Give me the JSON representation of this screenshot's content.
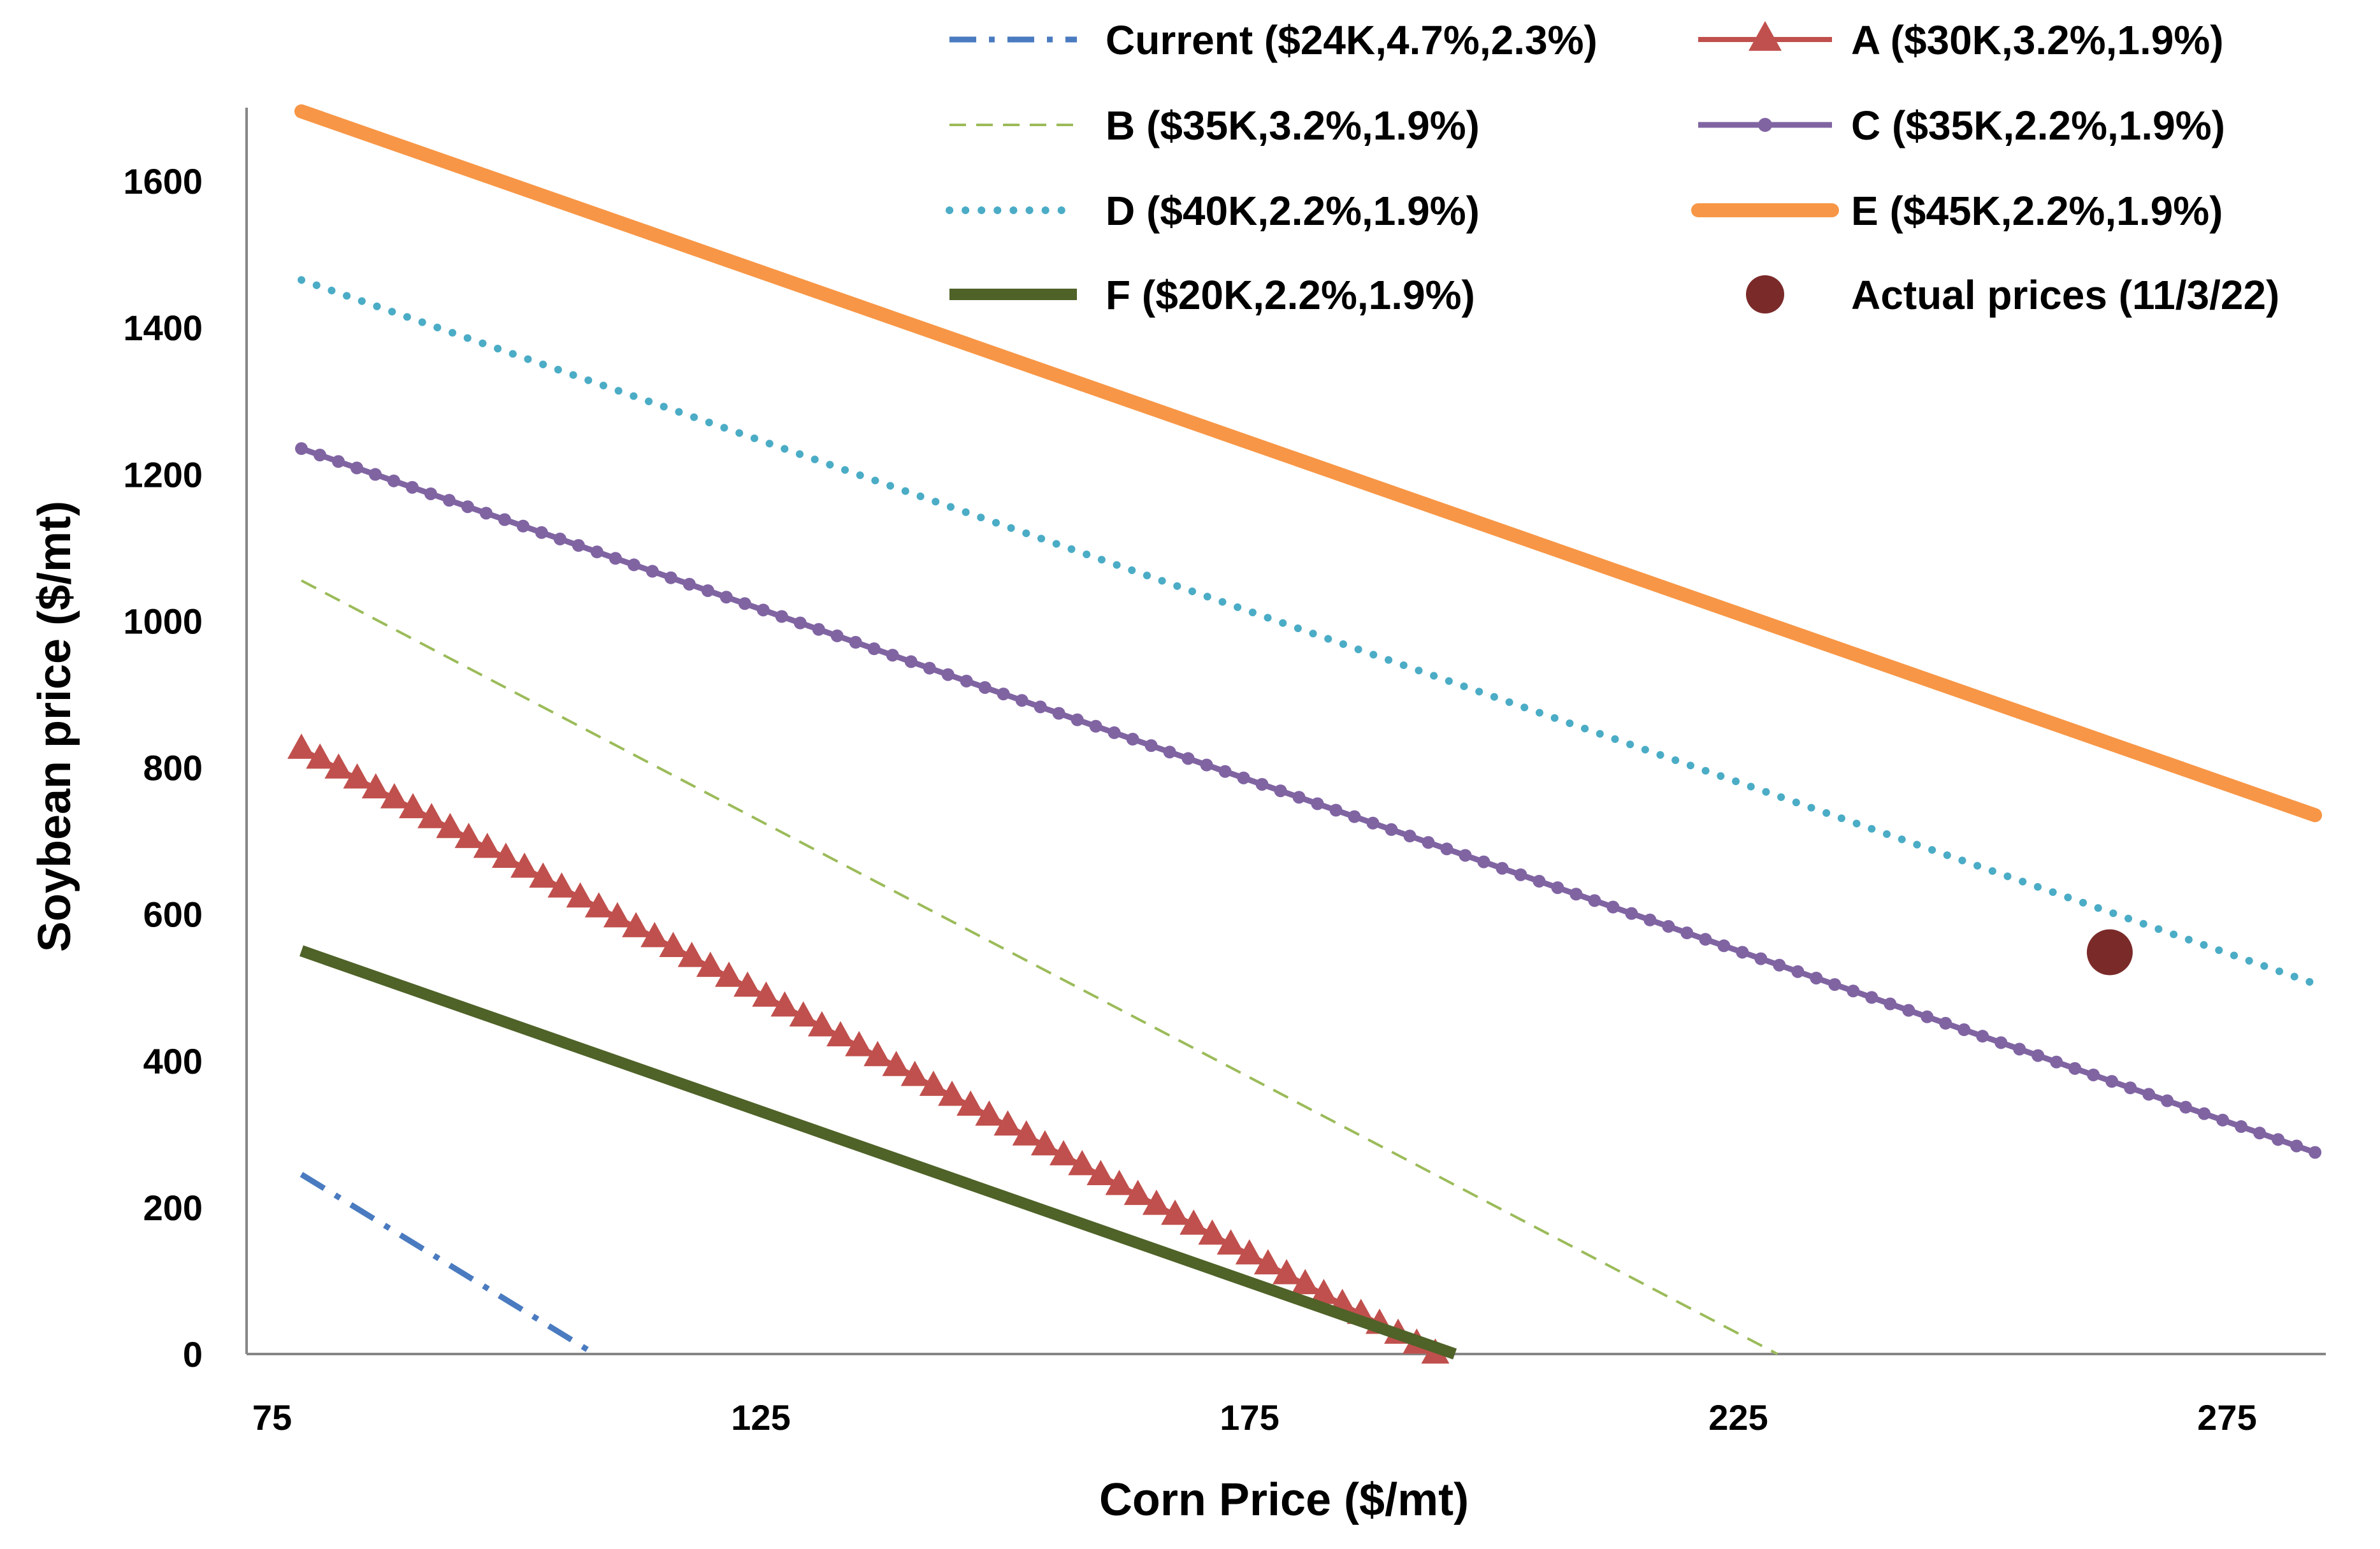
{
  "chart_data": {
    "type": "line",
    "xlabel": "Corn Price ($/mt)",
    "ylabel": "Soybean price ($/mt)",
    "xlim": [
      75,
      285
    ],
    "ylim": [
      0,
      1700
    ],
    "xticks": [
      75,
      125,
      175,
      225,
      275
    ],
    "yticks": [
      0,
      200,
      400,
      600,
      800,
      1000,
      1200,
      1400,
      1600
    ],
    "grid": false,
    "legend_position": "top",
    "series": [
      {
        "key": "current",
        "name": "Current ($24K,4.7%,2.3%)",
        "color": "#4a7bc0",
        "style": "dash-dot",
        "x": [
          78,
          108
        ],
        "y": [
          245,
          0
        ]
      },
      {
        "key": "a",
        "name": "A ($30K,3.2%,1.9%)",
        "color": "#c0504d",
        "style": "solid-triangle-markers",
        "x": [
          78,
          194
        ],
        "y": [
          825,
          0
        ]
      },
      {
        "key": "b",
        "name": "B ($35K,3.2%,1.9%)",
        "color": "#9bbb59",
        "style": "dashed",
        "x": [
          78,
          229
        ],
        "y": [
          1055,
          0
        ]
      },
      {
        "key": "c",
        "name": "C ($35K,2.2%,1.9%)",
        "color": "#8064a2",
        "style": "solid-dot-markers",
        "x": [
          78,
          284
        ],
        "y": [
          1235,
          275
        ]
      },
      {
        "key": "d",
        "name": "D ($40K,2.2%,1.9%)",
        "color": "#4bacc6",
        "style": "dotted",
        "x": [
          78,
          284
        ],
        "y": [
          1465,
          505
        ]
      },
      {
        "key": "e",
        "name": "E ($45K,2.2%,1.9%)",
        "color": "#f79646",
        "style": "thick-solid",
        "x": [
          78,
          284
        ],
        "y": [
          1695,
          735
        ]
      },
      {
        "key": "f",
        "name": "F ($20K,2.2%,1.9%)",
        "color": "#4f6228",
        "style": "solid",
        "x": [
          78,
          196
        ],
        "y": [
          550,
          0
        ]
      }
    ],
    "points": [
      {
        "key": "actual",
        "name": "Actual prices (11/3/22)",
        "color": "#7b2a2a",
        "x": 263,
        "y": 548
      }
    ]
  }
}
